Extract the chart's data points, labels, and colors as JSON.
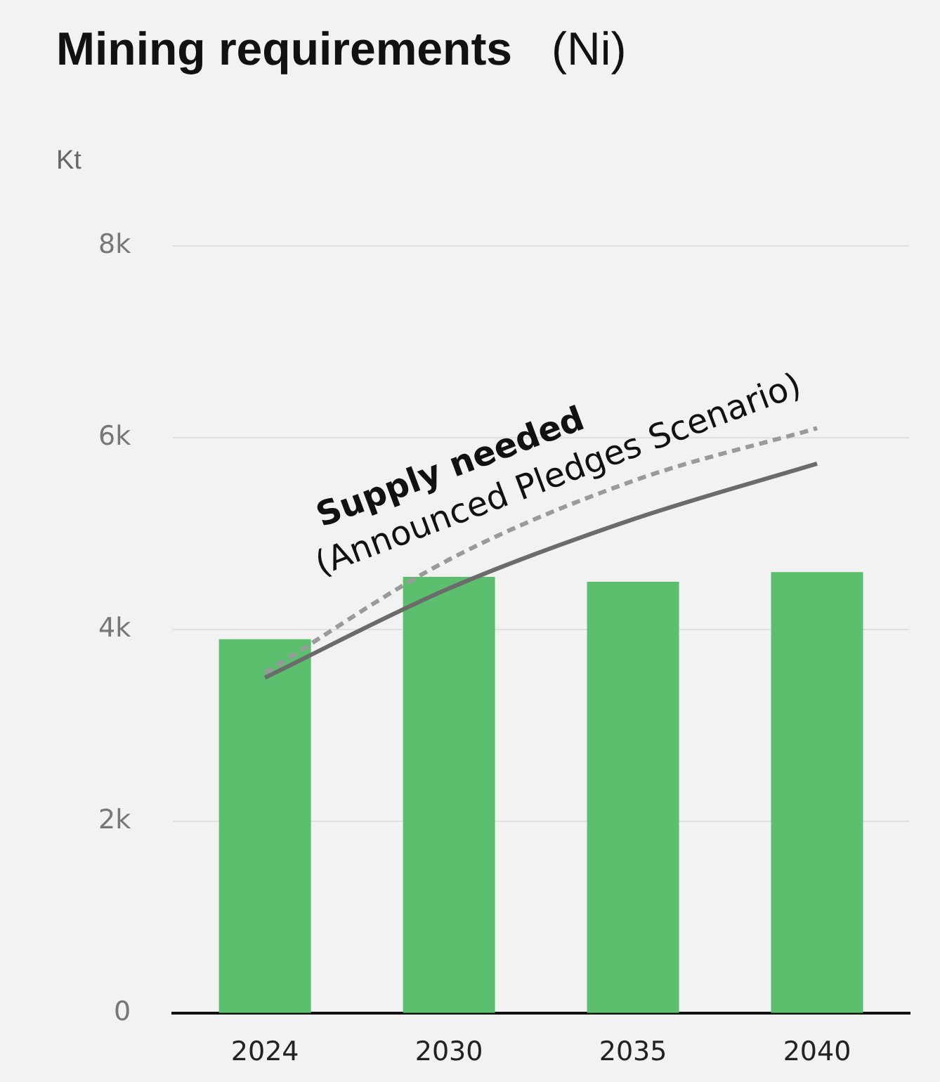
{
  "chart_data": {
    "type": "bar",
    "title": "Mining requirements",
    "subtitle": "(Ni)",
    "ylabel": "Kt",
    "categories": [
      "2024",
      "2030",
      "2035",
      "2040"
    ],
    "series": [
      {
        "color": "#5cbf6e",
        "values": [
          3900,
          4550,
          4500,
          4600
        ]
      },
      {
        "type": "line",
        "color": "#9a9a9a",
        "line_style": "dashed",
        "values": [
          3550,
          4730,
          5550,
          6100
        ]
      },
      {
        "type": "line",
        "color": "#6b6b6b",
        "line_style": "solid",
        "values": [
          3500,
          4430,
          5150,
          5730
        ]
      }
    ],
    "ylim": [
      0,
      8000
    ],
    "yticks": [
      {
        "value": 0,
        "label": "0"
      },
      {
        "value": 2000,
        "label": "2k"
      },
      {
        "value": 4000,
        "label": "4k"
      },
      {
        "value": 6000,
        "label": "6k"
      },
      {
        "value": 8000,
        "label": "8k"
      }
    ],
    "grid": "y",
    "legend": false,
    "marker": "none",
    "annotations": [
      "Supply needed",
      "(Announced Pledges Scenario)"
    ]
  }
}
